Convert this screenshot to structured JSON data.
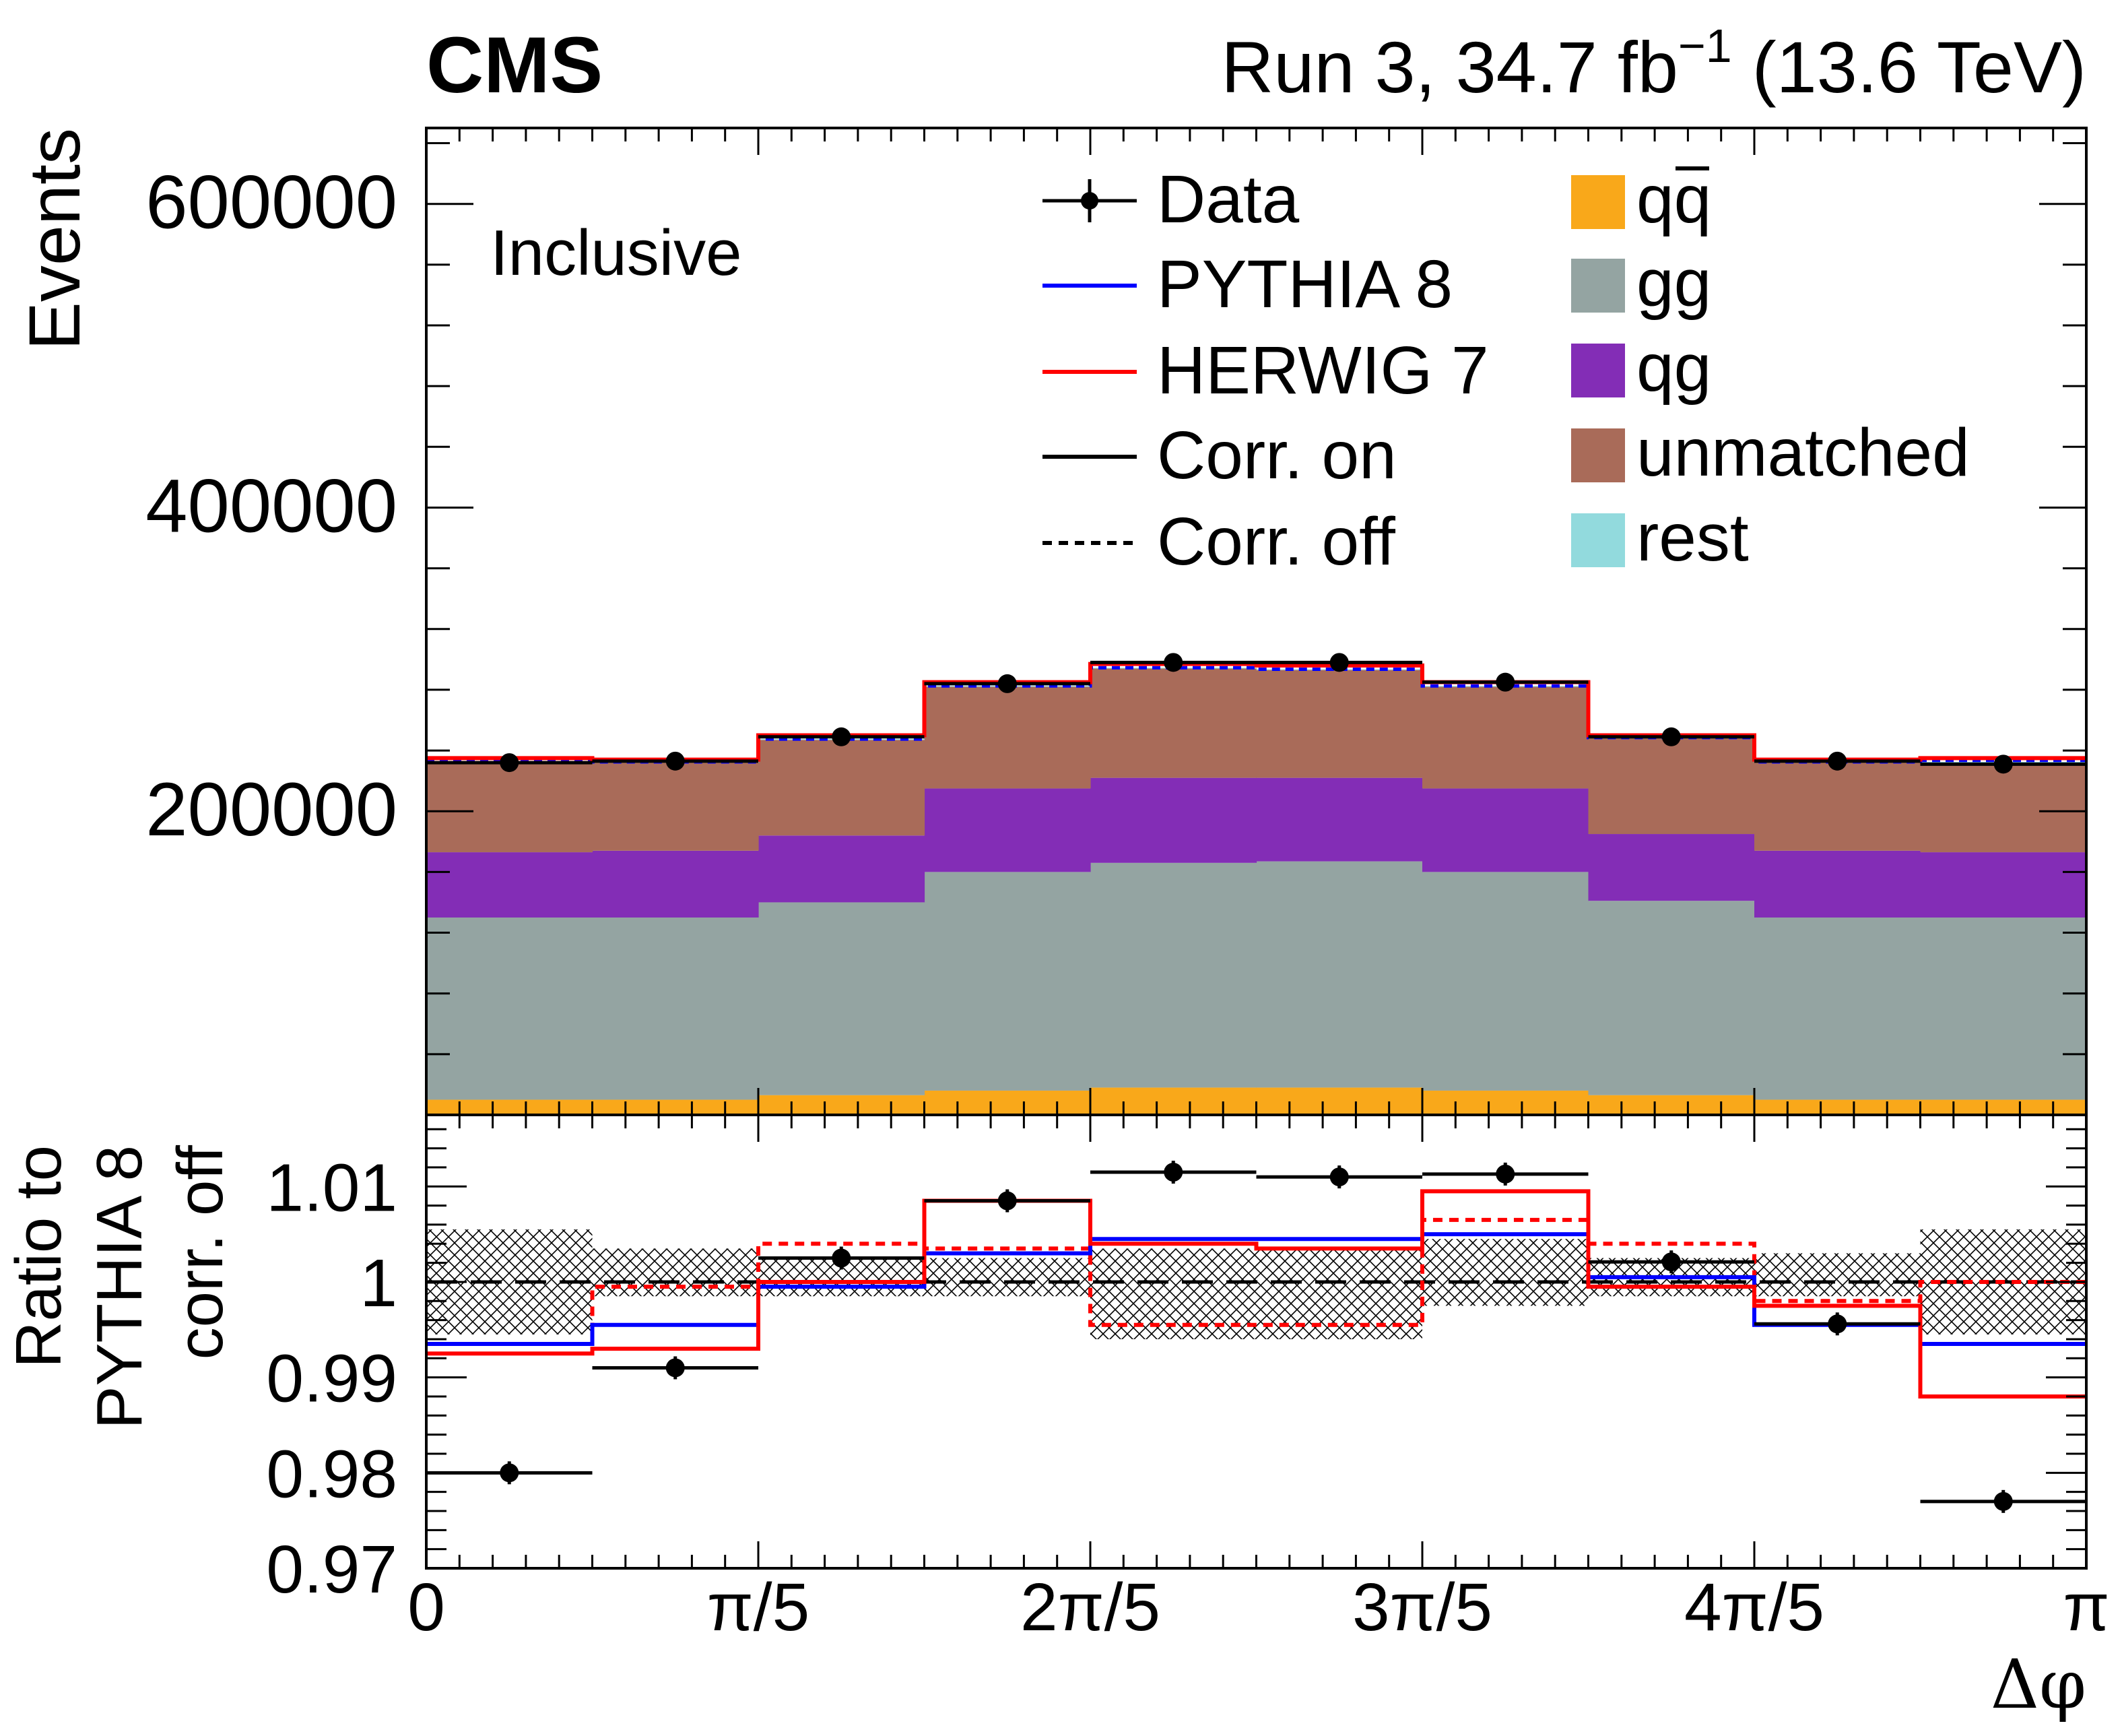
{
  "chart_data": {
    "type": "histogram-with-ratio",
    "experiment": "CMS",
    "lumi_label": "Run 3, 34.7 fb",
    "lumi_exponent": "−1",
    "energy_label": " (13.6 TeV)",
    "selection_label": "Inclusive",
    "xlabel": "Δφ",
    "x_range": [
      0,
      3.14159265
    ],
    "x_ticks": [
      {
        "value": 0,
        "label": "0"
      },
      {
        "value": 0.62831853,
        "label": "π/5"
      },
      {
        "value": 1.25663706,
        "label": "2π/5"
      },
      {
        "value": 1.88495559,
        "label": "3π/5"
      },
      {
        "value": 2.51327412,
        "label": "4π/5"
      },
      {
        "value": 3.14159265,
        "label": "π"
      }
    ],
    "bin_edges": [
      0,
      0.31415927,
      0.62831853,
      0.9424778,
      1.25663706,
      1.57079633,
      1.88495559,
      2.19911486,
      2.51327412,
      2.82743339,
      3.14159265
    ],
    "main": {
      "ylabel": "Events",
      "ylim": [
        0,
        650000
      ],
      "y_ticks": [
        {
          "value": 200000,
          "label": "200000"
        },
        {
          "value": 400000,
          "label": "400000"
        },
        {
          "value": 600000,
          "label": "600000"
        }
      ],
      "stack": [
        {
          "name": "q̅q",
          "label": "qq",
          "overbar": "q",
          "color": "#f9a81a",
          "values": [
            10000,
            10000,
            13000,
            16000,
            18000,
            18000,
            16000,
            13000,
            10000,
            10000
          ]
        },
        {
          "name": "gg",
          "label": "gg",
          "color": "#94a4a2",
          "values": [
            120000,
            120000,
            127000,
            144000,
            148000,
            149000,
            144000,
            128000,
            120000,
            120000
          ]
        },
        {
          "name": "qg",
          "label": "qg",
          "color": "#832db6",
          "values": [
            43000,
            44000,
            44000,
            55000,
            56000,
            55000,
            55000,
            44000,
            44000,
            43000
          ]
        },
        {
          "name": "unmatched",
          "label": "unmatched",
          "color": "#a96b59",
          "values": [
            59000,
            58000,
            63000,
            67000,
            72000,
            71000,
            67000,
            63000,
            58000,
            59000
          ]
        },
        {
          "name": "rest",
          "label": "rest",
          "color": "#92dadd",
          "values": [
            500,
            500,
            500,
            500,
            500,
            500,
            500,
            500,
            500,
            500
          ]
        }
      ],
      "pythia8_corr_off": [
        233500,
        232500,
        247500,
        282500,
        294500,
        293500,
        282500,
        248500,
        232500,
        233500
      ],
      "herwig7_corr_on": [
        235000,
        234000,
        250000,
        285000,
        297000,
        296000,
        285000,
        250000,
        234000,
        235000
      ],
      "data": [
        232000,
        233000,
        249000,
        284000,
        298000,
        298000,
        285000,
        249000,
        233000,
        231000
      ]
    },
    "ratio": {
      "ylabel_lines": [
        "Ratio to",
        "PYTHIA 8",
        "corr. off"
      ],
      "ylim": [
        0.97,
        1.0175
      ],
      "y_ticks": [
        {
          "value": 0.97,
          "label": "0.97"
        },
        {
          "value": 0.98,
          "label": "0.98"
        },
        {
          "value": 0.99,
          "label": "0.99"
        },
        {
          "value": 1.0,
          "label": "1"
        },
        {
          "value": 1.01,
          "label": "1.01"
        }
      ],
      "reference": 1.0,
      "uncertainty_band": [
        [
          0.9945,
          1.0055
        ],
        [
          0.9985,
          1.0035
        ],
        [
          0.9985,
          1.0025
        ],
        [
          0.9985,
          1.0025
        ],
        [
          0.994,
          1.0035
        ],
        [
          0.994,
          1.0035
        ],
        [
          0.9975,
          1.0045
        ],
        [
          0.9985,
          1.0025
        ],
        [
          0.9985,
          1.003
        ],
        [
          0.9945,
          1.0055
        ]
      ],
      "pythia8_corr_on": [
        0.9935,
        0.9955,
        0.9995,
        1.003,
        1.0045,
        1.0045,
        1.005,
        1.0005,
        0.9955,
        0.9935
      ],
      "herwig7_corr_on": [
        0.9925,
        0.993,
        1.0,
        1.0085,
        1.004,
        1.0035,
        1.0095,
        0.9995,
        0.9975,
        0.988
      ],
      "herwig7_corr_off": [
        0.9935,
        0.9995,
        1.004,
        1.0035,
        0.9955,
        0.9955,
        1.0065,
        1.004,
        0.998,
        1.0
      ],
      "data": [
        0.98,
        0.991,
        1.0025,
        1.0085,
        1.0115,
        1.011,
        1.0113,
        1.0021,
        0.9956,
        0.977
      ],
      "data_err": [
        0.0012,
        0.0012,
        0.0012,
        0.0012,
        0.0012,
        0.0012,
        0.0012,
        0.0012,
        0.0012,
        0.0012
      ]
    },
    "legend": {
      "left": [
        {
          "key": "data",
          "label": "Data"
        },
        {
          "key": "pythia",
          "label": "PYTHIA 8",
          "color": "#0000ff"
        },
        {
          "key": "herwig",
          "label": "HERWIG 7",
          "color": "#ff0000"
        },
        {
          "key": "corr-on",
          "label": "Corr. on"
        },
        {
          "key": "corr-off",
          "label": "Corr. off"
        }
      ]
    },
    "colors": {
      "data": "#000000",
      "pythia": "#0000ff",
      "herwig": "#ff0000",
      "band": "#000000",
      "frame": "#000000"
    }
  }
}
